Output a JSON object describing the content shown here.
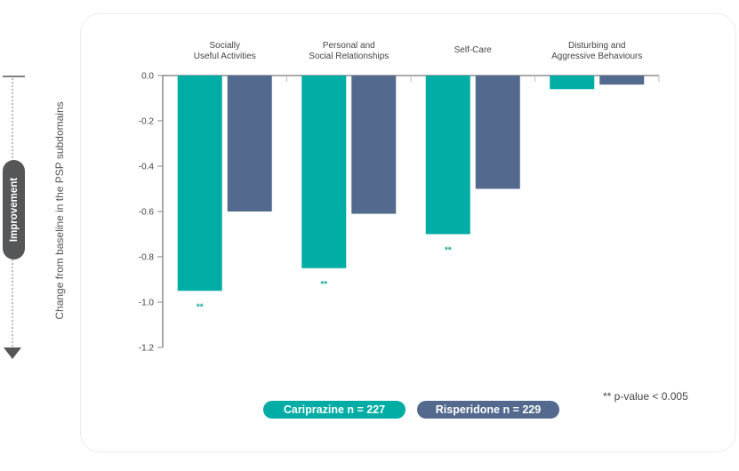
{
  "improvement_indicator": {
    "label": "Improvement",
    "direction": "down"
  },
  "footnote": "** p-value < 0.005",
  "legend": [
    {
      "label": "Cariprazine n = 227",
      "color": "#00ada5"
    },
    {
      "label": "Risperidone n = 229",
      "color": "#536a8e"
    }
  ],
  "chart_data": {
    "type": "bar",
    "title": "",
    "xlabel": "",
    "ylabel": "Change from baseline in the PSP subdomains",
    "categories": [
      [
        "Socially",
        "Useful Activities"
      ],
      [
        "Personal and",
        "Social Relationships"
      ],
      [
        "Self-Care"
      ],
      [
        "Disturbing and",
        "Aggressive Behaviours"
      ]
    ],
    "series": [
      {
        "name": "Cariprazine n = 227",
        "color": "#00ada5",
        "values": [
          -0.95,
          -0.85,
          -0.7,
          -0.06
        ]
      },
      {
        "name": "Risperidone n = 229",
        "color": "#536a8e",
        "values": [
          -0.6,
          -0.61,
          -0.5,
          -0.04
        ]
      }
    ],
    "significance": [
      {
        "category": 0,
        "series": 0,
        "label": "**"
      },
      {
        "category": 1,
        "series": 0,
        "label": "**"
      },
      {
        "category": 2,
        "series": 0,
        "label": "**"
      }
    ],
    "ylim": [
      -1.2,
      0.0
    ],
    "yticks": [
      "0.0",
      "-0.2",
      "-0.4",
      "-0.6",
      "-0.8",
      "-1.0",
      "-1.2"
    ],
    "ytick_values": [
      0.0,
      -0.2,
      -0.4,
      -0.6,
      -0.8,
      -1.0,
      -1.2
    ],
    "grid": false,
    "legend_position": "bottom"
  }
}
